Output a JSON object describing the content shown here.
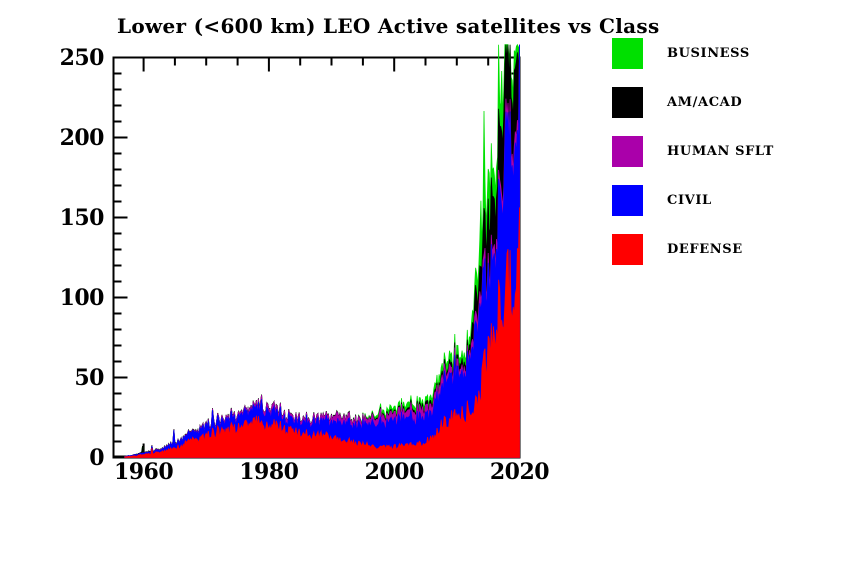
{
  "chart_data": {
    "type": "area",
    "stacked": true,
    "title": "Lower (<600 km) LEO Active satellites vs Class",
    "xlabel": "",
    "ylabel": "",
    "xlim": [
      1955.2,
      2020
    ],
    "ylim": [
      0,
      250
    ],
    "x_major_ticks": [
      1960,
      1980,
      2000,
      2020
    ],
    "x_minor_step": 5,
    "y_major_ticks": [
      0,
      50,
      100,
      150,
      200,
      250
    ],
    "y_minor_step": 10,
    "grid": false,
    "background": "#ffffff",
    "axis_color": "#000000",
    "overflow_cap": 258,
    "noise_amplitude": 0.25,
    "samples_per_year": 6,
    "noise_seed": 42,
    "years": [
      1957,
      1958,
      1959,
      1960,
      1961,
      1962,
      1963,
      1964,
      1965,
      1966,
      1967,
      1968,
      1969,
      1970,
      1971,
      1972,
      1973,
      1974,
      1975,
      1976,
      1977,
      1978,
      1979,
      1980,
      1981,
      1982,
      1983,
      1984,
      1985,
      1986,
      1987,
      1988,
      1989,
      1990,
      1991,
      1992,
      1993,
      1994,
      1995,
      1996,
      1997,
      1998,
      1999,
      2000,
      2001,
      2002,
      2003,
      2004,
      2005,
      2006,
      2007,
      2008,
      2009,
      2010,
      2011,
      2012,
      2013,
      2014,
      2015,
      2016,
      2017,
      2018,
      2019,
      2020
    ],
    "series": [
      {
        "name": "DEFENSE",
        "color": "#ff0000",
        "values": [
          0.4,
          0.8,
          1.2,
          1.8,
          2.4,
          3,
          3.5,
          4.5,
          6,
          7.5,
          9,
          10.5,
          12,
          13.5,
          15,
          16,
          17,
          17.5,
          18,
          19,
          20,
          21,
          21.5,
          21,
          19.5,
          18,
          16.5,
          15.5,
          15,
          14.5,
          14,
          13.5,
          13,
          13,
          12.5,
          11,
          9.5,
          8.5,
          8,
          7.5,
          7,
          6.5,
          6.5,
          6.5,
          7,
          7.5,
          8,
          9,
          10,
          12,
          16,
          23,
          24,
          25,
          28,
          29,
          32,
          45,
          70,
          85,
          92,
          103,
          115,
          127
        ]
      },
      {
        "name": "CIVIL",
        "color": "#0000ff",
        "values": [
          0.3,
          0.5,
          0.8,
          1,
          1,
          1.5,
          1.5,
          2.5,
          3,
          3.5,
          4,
          4.5,
          5,
          5.5,
          6,
          6,
          6,
          6,
          6.5,
          7,
          7.5,
          8,
          9,
          9,
          8.5,
          8,
          7.5,
          7.5,
          7,
          7.5,
          8,
          8.5,
          9,
          9.5,
          10.5,
          10.5,
          11,
          11.5,
          12,
          13,
          14,
          15,
          16,
          16.5,
          16.5,
          16.5,
          16.5,
          16,
          16,
          17,
          20,
          27,
          28,
          27,
          28,
          30,
          46,
          50,
          42,
          48,
          78,
          86,
          89,
          90
        ]
      },
      {
        "name": "HUMAN SFLT",
        "color": "#aa00aa",
        "values": [
          0,
          0,
          0,
          0,
          0.2,
          0.3,
          0.3,
          0.3,
          0.3,
          0.4,
          0.4,
          0.5,
          0.8,
          0.8,
          1,
          1,
          1.2,
          1.2,
          1.5,
          1.5,
          1.8,
          2,
          2.5,
          2.5,
          2.5,
          2.2,
          2,
          2,
          2,
          2,
          2.2,
          2.2,
          2.5,
          3,
          3.5,
          3,
          3,
          3,
          3.2,
          3.5,
          4,
          4.5,
          4.5,
          4.5,
          4.5,
          4.5,
          4.8,
          5,
          5,
          5,
          4.5,
          4.5,
          4.5,
          4,
          3.5,
          3,
          6,
          6,
          6,
          6,
          6,
          7,
          8,
          8
        ]
      },
      {
        "name": "AM/ACAD",
        "color": "#000000",
        "values": [
          0,
          0,
          0.3,
          0.3,
          0.4,
          0.3,
          0.2,
          0.2,
          0.3,
          0.3,
          0.3,
          0.3,
          0.3,
          0.3,
          0.3,
          0.3,
          0.3,
          0.3,
          0.3,
          0.3,
          0.3,
          0.3,
          0.3,
          0.3,
          0.3,
          0.3,
          0.3,
          0.3,
          0.3,
          0.3,
          0.3,
          0.3,
          0.3,
          0.5,
          0.5,
          0.5,
          0.5,
          0.5,
          0.5,
          0.5,
          0.8,
          0.8,
          1,
          1,
          1,
          1.2,
          1.5,
          1.5,
          2,
          2,
          2,
          2.5,
          2.5,
          3,
          3.5,
          3.5,
          14,
          20,
          32,
          29,
          43,
          42,
          38,
          40
        ]
      },
      {
        "name": "BUSINESS",
        "color": "#00e000",
        "values": [
          0,
          0,
          0,
          0,
          0,
          0,
          0,
          0,
          0,
          0,
          0,
          0,
          0,
          0,
          0,
          0,
          0,
          0,
          0,
          0,
          0,
          0,
          0,
          0,
          0,
          0,
          0,
          0,
          0,
          0,
          0,
          0,
          0,
          0,
          0,
          0,
          0,
          0.2,
          0.5,
          1,
          1.5,
          2,
          2.5,
          3,
          3,
          3,
          3,
          3,
          3,
          3.5,
          4,
          5,
          5,
          5,
          5,
          5,
          10,
          16,
          18,
          18,
          16,
          12,
          12,
          12
        ]
      }
    ],
    "spikes": [
      {
        "year": 1959.9,
        "series": "AM/ACAD",
        "add": 4
      },
      {
        "year": 1961.4,
        "series": "DEFENSE",
        "add": 3
      },
      {
        "year": 1964.9,
        "series": "CIVIL",
        "add": 8
      },
      {
        "year": 1971.0,
        "series": "CIVIL",
        "add": 5
      },
      {
        "year": 1978.8,
        "series": "CIVIL",
        "add": 5
      },
      {
        "year": 1990.9,
        "series": "HUMAN SFLT",
        "add": 6
      },
      {
        "year": 2013.9,
        "series": "BUSINESS",
        "add": 30
      },
      {
        "year": 2014.35,
        "series": "BUSINESS",
        "add": 45
      },
      {
        "year": 2015.2,
        "series": "BUSINESS",
        "add": 22
      },
      {
        "year": 2016.6,
        "series": "BUSINESS",
        "add": 55
      },
      {
        "year": 2017.1,
        "series": "BUSINESS",
        "add": 25
      }
    ],
    "legend": {
      "position": "right",
      "items": [
        {
          "label": "BUSINESS",
          "color": "#00e000"
        },
        {
          "label": "AM/ACAD",
          "color": "#000000"
        },
        {
          "label": "HUMAN SFLT",
          "color": "#aa00aa"
        },
        {
          "label": "CIVIL",
          "color": "#0000ff"
        },
        {
          "label": "DEFENSE",
          "color": "#ff0000"
        }
      ]
    }
  }
}
